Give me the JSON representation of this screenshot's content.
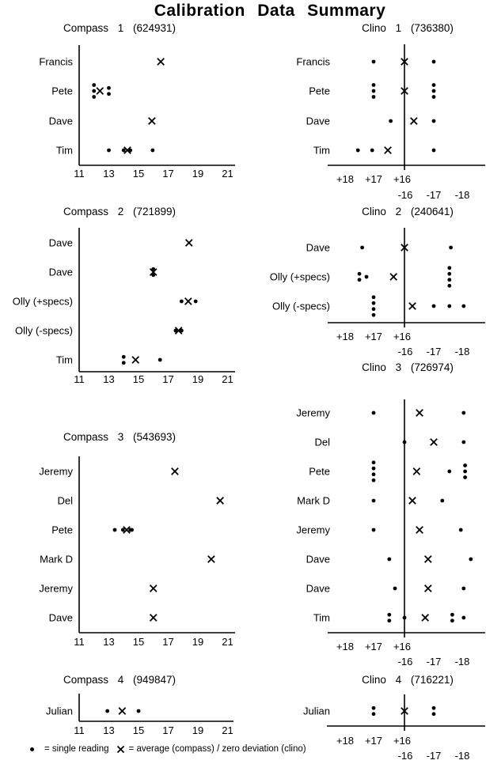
{
  "page_title": "Calibration  Data  Summary",
  "colors": {
    "ink": "#000000",
    "background": "#ffffff"
  },
  "legend": {
    "dot_symbol": "single-reading-dot",
    "dot_label": "= single reading",
    "x_symbol": "average-x-mark",
    "x_label": "= average (compass) / zero deviation (clino)"
  },
  "chart_data": [
    {
      "id": "compass-1",
      "type": "scatter",
      "instrument": "Compass",
      "number": "1",
      "serial": "(624931)",
      "axis": {
        "style": "compass",
        "range": [
          11,
          21
        ],
        "ticks": [
          11,
          13,
          15,
          17,
          19,
          21
        ]
      },
      "rows": [
        {
          "label": "Francis",
          "points": [
            {
              "v": 16.5,
              "m": "a"
            }
          ]
        },
        {
          "label": "Pete",
          "points": [
            {
              "v": 12,
              "m": "s"
            },
            {
              "v": 12,
              "m": "s"
            },
            {
              "v": 12,
              "m": "s"
            },
            {
              "v": 12.4,
              "m": "a"
            },
            {
              "v": 13,
              "m": "s"
            },
            {
              "v": 13,
              "m": "s"
            }
          ]
        },
        {
          "label": "Dave",
          "points": [
            {
              "v": 15.9,
              "m": "a"
            }
          ]
        },
        {
          "label": "Tim",
          "points": [
            {
              "v": 13,
              "m": "s"
            },
            {
              "v": 14,
              "m": "s"
            },
            {
              "v": 14.25,
              "m": "a"
            },
            {
              "v": 14.45,
              "m": "s"
            },
            {
              "v": 15.95,
              "m": "s"
            }
          ]
        }
      ]
    },
    {
      "id": "clino-1",
      "type": "scatter",
      "instrument": "Clino",
      "number": "1",
      "serial": "(736380)",
      "axis": {
        "style": "clino",
        "plus_ticks": [
          "+18",
          "+17",
          "+16"
        ],
        "minus_ticks": [
          "-16",
          "-17",
          "-18"
        ]
      },
      "rows": [
        {
          "label": "Francis",
          "points": [
            {
              "v": 17,
              "m": "s"
            },
            {
              "v": 0,
              "m": "a"
            },
            {
              "v": -17,
              "m": "s"
            }
          ]
        },
        {
          "label": "Pete",
          "points": [
            {
              "v": 17,
              "m": "s"
            },
            {
              "v": 17,
              "m": "s"
            },
            {
              "v": 17,
              "m": "s"
            },
            {
              "v": 0,
              "m": "a"
            },
            {
              "v": -17,
              "m": "s"
            },
            {
              "v": -17,
              "m": "s"
            },
            {
              "v": -17,
              "m": "s"
            }
          ]
        },
        {
          "label": "Dave",
          "points": [
            {
              "v": 16.4,
              "m": "s"
            },
            {
              "v": -16.3,
              "m": "a"
            },
            {
              "v": -17,
              "m": "s"
            }
          ]
        },
        {
          "label": "Tim",
          "points": [
            {
              "v": 17.55,
              "m": "s"
            },
            {
              "v": 17.05,
              "m": "s"
            },
            {
              "v": 16.5,
              "m": "a"
            },
            {
              "v": -17,
              "m": "s"
            }
          ]
        }
      ]
    },
    {
      "id": "compass-2",
      "type": "scatter",
      "instrument": "Compass",
      "number": "2",
      "serial": "(721899)",
      "axis": {
        "style": "compass",
        "range": [
          11,
          21
        ],
        "ticks": [
          11,
          13,
          15,
          17,
          19,
          21
        ]
      },
      "rows": [
        {
          "label": "Dave",
          "points": [
            {
              "v": 18.4,
              "m": "a"
            }
          ]
        },
        {
          "label": "Dave",
          "points": [
            {
              "v": 16,
              "m": "s"
            },
            {
              "v": 16,
              "m": "s"
            },
            {
              "v": 16,
              "m": "a"
            }
          ]
        },
        {
          "label": "Olly (+specs)",
          "points": [
            {
              "v": 17.9,
              "m": "s"
            },
            {
              "v": 18.35,
              "m": "a"
            },
            {
              "v": 18.85,
              "m": "s"
            }
          ]
        },
        {
          "label": "Olly (-specs)",
          "points": [
            {
              "v": 17.5,
              "m": "s"
            },
            {
              "v": 17.7,
              "m": "a"
            },
            {
              "v": 17.9,
              "m": "s"
            }
          ]
        },
        {
          "label": "Tim",
          "points": [
            {
              "v": 14,
              "m": "s"
            },
            {
              "v": 14,
              "m": "s"
            },
            {
              "v": 14.8,
              "m": "a"
            },
            {
              "v": 16.45,
              "m": "s"
            }
          ]
        }
      ]
    },
    {
      "id": "clino-2",
      "type": "scatter",
      "instrument": "Clino",
      "number": "2",
      "serial": "(240641)",
      "axis": {
        "style": "clino",
        "plus_ticks": [
          "+18",
          "+17",
          "+16"
        ],
        "minus_ticks": [
          "-16",
          "-17",
          "-18"
        ]
      },
      "rows": [
        {
          "label": "Dave",
          "points": [
            {
              "v": 17.4,
              "m": "s"
            },
            {
              "v": 0,
              "m": "a"
            },
            {
              "v": -17.6,
              "m": "s"
            }
          ]
        },
        {
          "label": "Olly (+specs)",
          "points": [
            {
              "v": 17.5,
              "m": "s"
            },
            {
              "v": 17.5,
              "m": "s"
            },
            {
              "v": 17.25,
              "m": "s"
            },
            {
              "v": 16.3,
              "m": "a"
            },
            {
              "v": -17.55,
              "m": "s"
            },
            {
              "v": -17.55,
              "m": "s"
            },
            {
              "v": -17.55,
              "m": "s"
            },
            {
              "v": -17.55,
              "m": "s"
            }
          ]
        },
        {
          "label": "Olly (-specs)",
          "points": [
            {
              "v": 17,
              "m": "s"
            },
            {
              "v": 17,
              "m": "s"
            },
            {
              "v": 17,
              "m": "s"
            },
            {
              "v": 17,
              "m": "s"
            },
            {
              "v": -16.25,
              "m": "a"
            },
            {
              "v": -17,
              "m": "s"
            },
            {
              "v": -17.55,
              "m": "s"
            },
            {
              "v": -18.05,
              "m": "s"
            }
          ]
        }
      ]
    },
    {
      "id": "compass-3",
      "type": "scatter",
      "instrument": "Compass",
      "number": "3",
      "serial": "(543693)",
      "axis": {
        "style": "compass",
        "range": [
          11,
          21
        ],
        "ticks": [
          11,
          13,
          15,
          17,
          19,
          21
        ]
      },
      "rows": [
        {
          "label": "Jeremy",
          "points": [
            {
              "v": 17.45,
              "m": "a"
            }
          ]
        },
        {
          "label": "Del",
          "points": [
            {
              "v": 20.5,
              "m": "a"
            }
          ]
        },
        {
          "label": "Pete",
          "points": [
            {
              "v": 13.4,
              "m": "s"
            },
            {
              "v": 13.95,
              "m": "s"
            },
            {
              "v": 14.2,
              "m": "a"
            },
            {
              "v": 14.45,
              "m": "s"
            },
            {
              "v": 14.55,
              "m": "s"
            }
          ]
        },
        {
          "label": "Mark D",
          "points": [
            {
              "v": 19.9,
              "m": "a"
            }
          ]
        },
        {
          "label": "Jeremy",
          "points": [
            {
              "v": 16,
              "m": "a"
            }
          ]
        },
        {
          "label": "Dave",
          "points": [
            {
              "v": 16,
              "m": "a"
            }
          ]
        }
      ]
    },
    {
      "id": "clino-3",
      "type": "scatter",
      "instrument": "Clino",
      "number": "3",
      "serial": "(726974)",
      "axis": {
        "style": "clino",
        "plus_ticks": [
          "+18",
          "+17",
          "+16"
        ],
        "minus_ticks": [
          "-16",
          "-17",
          "-18"
        ]
      },
      "rows": [
        {
          "label": "Jeremy",
          "points": [
            {
              "v": 17,
              "m": "s"
            },
            {
              "v": -16.5,
              "m": "a"
            },
            {
              "v": -18.05,
              "m": "s"
            }
          ]
        },
        {
          "label": "Del",
          "points": [
            {
              "v": 0,
              "m": "s"
            },
            {
              "v": -17,
              "m": "a"
            },
            {
              "v": -18.05,
              "m": "s"
            }
          ]
        },
        {
          "label": "Pete",
          "points": [
            {
              "v": 17,
              "m": "s"
            },
            {
              "v": 17,
              "m": "s"
            },
            {
              "v": 17,
              "m": "s"
            },
            {
              "v": 17,
              "m": "s"
            },
            {
              "v": -16.4,
              "m": "a"
            },
            {
              "v": -17.55,
              "m": "s"
            },
            {
              "v": -18.1,
              "m": "s"
            },
            {
              "v": -18.1,
              "m": "s"
            },
            {
              "v": -18.1,
              "m": "s"
            }
          ]
        },
        {
          "label": "Mark D",
          "points": [
            {
              "v": 17,
              "m": "s"
            },
            {
              "v": -16.25,
              "m": "a"
            },
            {
              "v": -17.3,
              "m": "s"
            }
          ]
        },
        {
          "label": "Jeremy",
          "points": [
            {
              "v": 17,
              "m": "s"
            },
            {
              "v": -16.5,
              "m": "a"
            },
            {
              "v": -17.95,
              "m": "s"
            }
          ]
        },
        {
          "label": "Dave",
          "points": [
            {
              "v": 16.45,
              "m": "s"
            },
            {
              "v": -16.8,
              "m": "a"
            },
            {
              "v": -18.3,
              "m": "s"
            }
          ]
        },
        {
          "label": "Dave",
          "points": [
            {
              "v": 16.25,
              "m": "s"
            },
            {
              "v": -16.8,
              "m": "a"
            },
            {
              "v": -18.05,
              "m": "s"
            }
          ]
        },
        {
          "label": "Tim",
          "points": [
            {
              "v": 16.45,
              "m": "s"
            },
            {
              "v": 16.45,
              "m": "s"
            },
            {
              "v": 0,
              "m": "s"
            },
            {
              "v": -16.7,
              "m": "a"
            },
            {
              "v": -17.65,
              "m": "s"
            },
            {
              "v": -17.65,
              "m": "s"
            },
            {
              "v": -18.05,
              "m": "s"
            }
          ]
        }
      ]
    },
    {
      "id": "compass-4",
      "type": "scatter",
      "instrument": "Compass",
      "number": "4",
      "serial": "(949847)",
      "axis": {
        "style": "compass",
        "range": [
          11,
          21
        ],
        "ticks": [
          11,
          13,
          15,
          17,
          19,
          21
        ]
      },
      "rows": [
        {
          "label": "Julian",
          "points": [
            {
              "v": 12.9,
              "m": "s"
            },
            {
              "v": 13.9,
              "m": "a"
            },
            {
              "v": 15,
              "m": "s"
            }
          ]
        }
      ]
    },
    {
      "id": "clino-4",
      "type": "scatter",
      "instrument": "Clino",
      "number": "4",
      "serial": "(716221)",
      "axis": {
        "style": "clino",
        "plus_ticks": [
          "+18",
          "+17",
          "+16"
        ],
        "minus_ticks": [
          "-16",
          "-17",
          "-18"
        ]
      },
      "rows": [
        {
          "label": "Julian",
          "points": [
            {
              "v": 17,
              "m": "s"
            },
            {
              "v": 17,
              "m": "s"
            },
            {
              "v": 0,
              "m": "a"
            },
            {
              "v": -17,
              "m": "s"
            },
            {
              "v": -17,
              "m": "s"
            }
          ]
        }
      ]
    }
  ]
}
